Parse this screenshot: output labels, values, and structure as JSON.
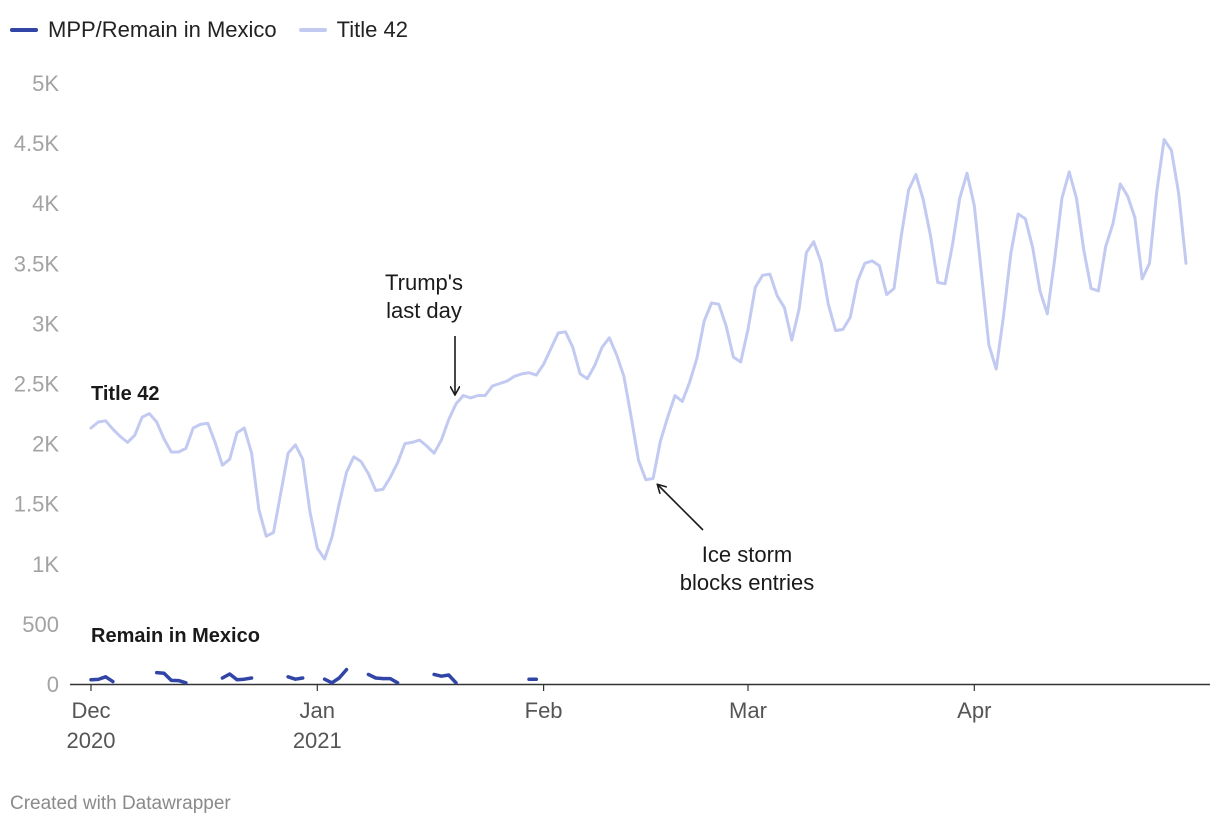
{
  "legend": [
    {
      "label": "MPP/Remain in Mexico",
      "color": "#3145a6"
    },
    {
      "label": "Title 42",
      "color": "#c3caf1"
    }
  ],
  "footer": "Created with Datawrapper",
  "chart_data": {
    "type": "line",
    "title": "",
    "xlabel": "",
    "ylabel": "",
    "x_start_date": "2020-12-01",
    "ylim": [
      0,
      5000
    ],
    "y_ticks": [
      {
        "value": 0,
        "label": "0"
      },
      {
        "value": 500,
        "label": "500"
      },
      {
        "value": 1000,
        "label": "1K"
      },
      {
        "value": 1500,
        "label": "1.5K"
      },
      {
        "value": 2000,
        "label": "2K"
      },
      {
        "value": 2500,
        "label": "2.5K"
      },
      {
        "value": 3000,
        "label": "3K"
      },
      {
        "value": 3500,
        "label": "3.5K"
      },
      {
        "value": 4000,
        "label": "4K"
      },
      {
        "value": 4500,
        "label": "4.5K"
      },
      {
        "value": 5000,
        "label": "5K"
      }
    ],
    "x_ticks": [
      {
        "date": "2020-12-01",
        "label": "Dec",
        "sublabel": "2020"
      },
      {
        "date": "2021-01-01",
        "label": "Jan",
        "sublabel": "2021"
      },
      {
        "date": "2021-02-01",
        "label": "Feb",
        "sublabel": ""
      },
      {
        "date": "2021-03-01",
        "label": "Mar",
        "sublabel": ""
      },
      {
        "date": "2021-04-01",
        "label": "Apr",
        "sublabel": ""
      }
    ],
    "grid": false,
    "legend_position": "top-left",
    "series": [
      {
        "name": "Title 42",
        "color": "#c3caf1",
        "start_date": "2020-12-01",
        "values": [
          2130,
          2180,
          2190,
          2120,
          2060,
          2010,
          2070,
          2220,
          2250,
          2180,
          2040,
          1930,
          1930,
          1960,
          2130,
          2160,
          2170,
          2010,
          1820,
          1870,
          2090,
          2130,
          1920,
          1450,
          1230,
          1260,
          1590,
          1920,
          1990,
          1870,
          1430,
          1130,
          1040,
          1220,
          1500,
          1760,
          1890,
          1850,
          1750,
          1610,
          1620,
          1720,
          1840,
          2000,
          2010,
          2030,
          1980,
          1920,
          2030,
          2200,
          2330,
          2400,
          2380,
          2400,
          2400,
          2480,
          2500,
          2520,
          2560,
          2580,
          2590,
          2570,
          2660,
          2790,
          2920,
          2930,
          2800,
          2580,
          2540,
          2650,
          2800,
          2880,
          2740,
          2560,
          2220,
          1860,
          1700,
          1710,
          2020,
          2220,
          2400,
          2350,
          2510,
          2710,
          3020,
          3170,
          3160,
          2980,
          2720,
          2680,
          2950,
          3300,
          3400,
          3410,
          3230,
          3130,
          2860,
          3120,
          3590,
          3680,
          3510,
          3160,
          2940,
          2950,
          3050,
          3350,
          3500,
          3520,
          3480,
          3240,
          3290,
          3730,
          4110,
          4240,
          4030,
          3730,
          3340,
          3330,
          3650,
          4040,
          4250,
          3980,
          3400,
          2820,
          2620,
          3060,
          3580,
          3910,
          3870,
          3630,
          3270,
          3080,
          3530,
          4040,
          4260,
          4040,
          3610,
          3290,
          3270,
          3640,
          3830,
          4160,
          4060,
          3880,
          3370,
          3500,
          4100,
          4530,
          4440,
          4080,
          3500
        ]
      },
      {
        "name": "MPP/Remain in Mexico",
        "color": "#3145a6",
        "start_date": "2020-12-01",
        "values": [
          35,
          38,
          60,
          20,
          null,
          null,
          null,
          null,
          null,
          95,
          90,
          30,
          28,
          10,
          null,
          null,
          null,
          null,
          50,
          83,
          35,
          40,
          50,
          null,
          null,
          null,
          null,
          60,
          40,
          50,
          null,
          null,
          40,
          10,
          50,
          120,
          null,
          null,
          80,
          50,
          45,
          45,
          10,
          null,
          null,
          null,
          null,
          80,
          65,
          75,
          10,
          null,
          null,
          null,
          null,
          null,
          null,
          null,
          null,
          null,
          40,
          40
        ]
      }
    ],
    "annotations": [
      {
        "text": [
          "Trump's",
          "last day"
        ],
        "date": "2021-01-20",
        "value": 2400
      },
      {
        "text": [
          "Ice storm",
          "blocks entries"
        ],
        "date": "2021-02-17",
        "value": 1700
      }
    ],
    "series_labels": [
      {
        "text": "Title 42"
      },
      {
        "text": "Remain in Mexico"
      }
    ]
  }
}
